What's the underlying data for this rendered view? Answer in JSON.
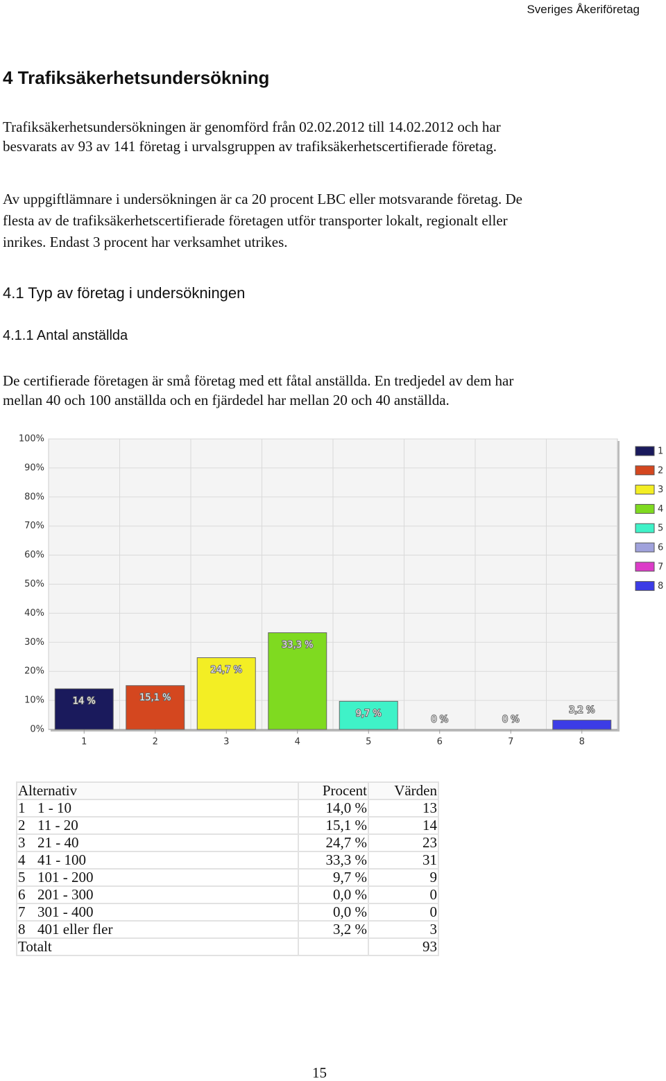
{
  "header": {
    "company": "Sveriges Åkeriföretag"
  },
  "heading": "4 Trafiksäkerhetsundersökning",
  "paragraphs": [
    [
      "Trafiksäkerhetsundersökningen är genomförd från 02.02.2012 till 14.02.2012 och har",
      "besvarats av 93 av 141 företag i urvalsgruppen av trafiksäkerhetscertifierade företag."
    ],
    [
      "Av uppgiftlämnare i undersökningen är ca 20 procent LBC eller motsvarande företag. De",
      "flesta av de trafiksäkerhetscertifierade företagen utför transporter lokalt, regionalt eller",
      "inrikes. Endast 3 procent har verksamhet utrikes."
    ]
  ],
  "subheading": "4.1 Typ av företag i undersökningen",
  "subsubheading": "4.1.1 Antal anställda",
  "intro": [
    "De certifierade företagen är små företag med ett fåtal anställda. En tredjedel av dem har",
    "mellan 40 och 100 anställda och en fjärdedel har mellan 20 och 40 anställda."
  ],
  "chart_data": {
    "type": "bar",
    "categories": [
      "1",
      "2",
      "3",
      "4",
      "5",
      "6",
      "7",
      "8"
    ],
    "values": [
      14,
      15.1,
      24.7,
      33.3,
      9.7,
      0,
      0,
      3.2
    ],
    "value_labels": [
      "14 %",
      "15,1 %",
      "24,7 %",
      "33,3 %",
      "9,7 %",
      "0 %",
      "0 %",
      "3,2 %"
    ],
    "colors": [
      "#1a1a5c",
      "#d4471f",
      "#f3ee24",
      "#7fda20",
      "#3ff2c8",
      "#a0a2dc",
      "#dc3cc8",
      "#3c3ce6"
    ],
    "ylim": [
      0,
      100
    ],
    "yticks": [
      {
        "value": 0,
        "label": "0%"
      },
      {
        "value": 10,
        "label": "10%"
      },
      {
        "value": 20,
        "label": "20%"
      },
      {
        "value": 30,
        "label": "30%"
      },
      {
        "value": 40,
        "label": "40%"
      },
      {
        "value": 50,
        "label": "50%"
      },
      {
        "value": 60,
        "label": "60%"
      },
      {
        "value": 70,
        "label": "70%"
      },
      {
        "value": 80,
        "label": "80%"
      },
      {
        "value": 90,
        "label": "90%"
      },
      {
        "value": 100,
        "label": "100%"
      }
    ],
    "grid": true,
    "legend": "right"
  },
  "table": {
    "header": [
      "Alternativ",
      "Procent",
      "Värden"
    ],
    "rows": [
      [
        "1",
        "1 - 10",
        "14,0 %",
        "13"
      ],
      [
        "2",
        "11 - 20",
        "15,1 %",
        "14"
      ],
      [
        "3",
        "21 - 40",
        "24,7 %",
        "23"
      ],
      [
        "4",
        "41 - 100",
        "33,3 %",
        "31"
      ],
      [
        "5",
        "101 - 200",
        "9,7 %",
        "9"
      ],
      [
        "6",
        "201 - 300",
        "0,0 %",
        "0"
      ],
      [
        "7",
        "301 - 400",
        "0,0 %",
        "0"
      ],
      [
        "8",
        "401 eller fler",
        "3,2 %",
        "3"
      ]
    ],
    "total": [
      "Totalt",
      "93"
    ]
  },
  "page_number": "15"
}
